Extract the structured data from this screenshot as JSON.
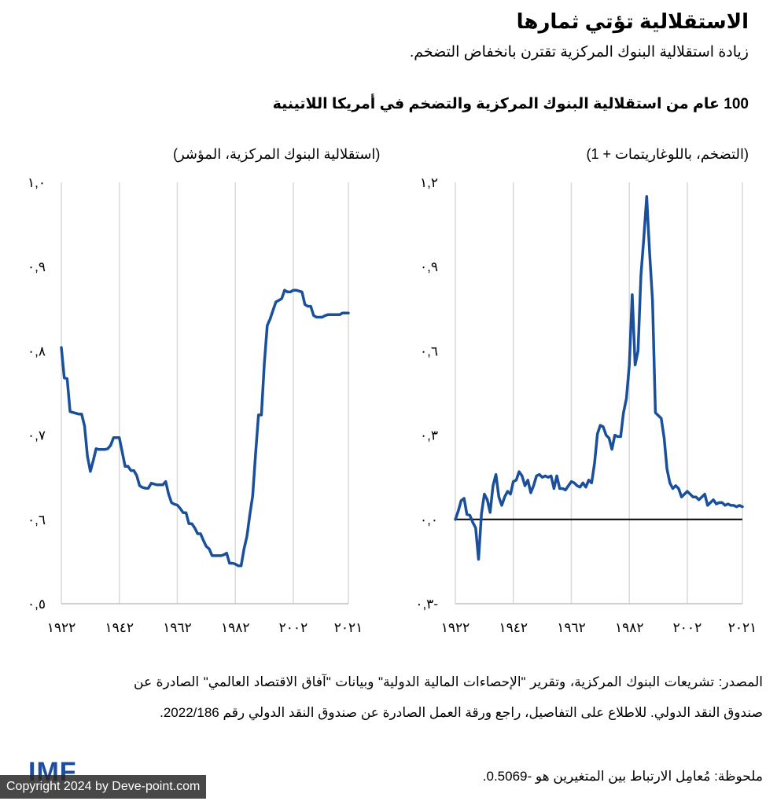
{
  "header": {
    "title": "الاستقلالية تؤتي ثمارها",
    "subtitle": "زيادة استقلالية البنوك المركزية تقترن بانخفاض التضخم.",
    "chart_heading": "100 عام من استقلالية البنوك المركزية والتضخم في أمريكا اللاتينية"
  },
  "footer": {
    "source": "المصدر: تشريعات البنوك المركزية، وتقرير \"الإحصاءات المالية الدولية\" وبيانات \"آفاق الاقتصاد العالمي\" الصادرة عن صندوق النقد الدولي. للاطلاع على التفاصيل، راجع ورقة العمل الصادرة عن صندوق النقد الدولي رقم 2022/186.",
    "note": "ملحوظة: مُعامِل الارتباط بين المتغيرين هو -0.5069.",
    "logo": "IMF",
    "copyright": "Copyright 2024 by Deve-point.com"
  },
  "colors": {
    "line": "#1a4f9c",
    "grid": "#d9d9d9",
    "zero_line": "#000000"
  },
  "chart_data": [
    {
      "type": "line",
      "ylabel": "(استقلالية البنوك المركزية، المؤشر)",
      "ylim": [
        0.5,
        1.0
      ],
      "xlim": [
        1922,
        2021
      ],
      "y_ticks": [
        0.5,
        0.6,
        0.7,
        0.8,
        0.9,
        1.0
      ],
      "y_tick_labels": [
        "٠,٥",
        "٠,٦",
        "٠,٧",
        "٠,٨",
        "٠,٩",
        "١,٠"
      ],
      "x_ticks": [
        1922,
        1942,
        1962,
        1982,
        2002,
        2021
      ],
      "x_tick_labels": [
        "١٩٢٢",
        "١٩٤٢",
        "١٩٦٢",
        "١٩٨٢",
        "٢٠٠٢",
        "٢٠٢١"
      ],
      "grid": "vertical",
      "series": [
        {
          "x": [
            1922,
            1923,
            1924,
            1925,
            1926,
            1927,
            1928,
            1929,
            1930,
            1931,
            1932,
            1933,
            1934,
            1935,
            1936,
            1937,
            1938,
            1939,
            1940,
            1941,
            1942,
            1943,
            1944,
            1945,
            1946,
            1947,
            1948,
            1949,
            1950,
            1951,
            1952,
            1953,
            1954,
            1955,
            1956,
            1957,
            1958,
            1959,
            1960,
            1961,
            1962,
            1963,
            1964,
            1965,
            1966,
            1967,
            1968,
            1969,
            1970,
            1971,
            1972,
            1973,
            1974,
            1975,
            1976,
            1977,
            1978,
            1979,
            1980,
            1981,
            1982,
            1983,
            1984,
            1985,
            1986,
            1987,
            1988,
            1989,
            1990,
            1991,
            1992,
            1993,
            1994,
            1995,
            1996,
            1997,
            1998,
            1999,
            2000,
            2001,
            2002,
            2003,
            2004,
            2005,
            2006,
            2007,
            2008,
            2009,
            2010,
            2011,
            2012,
            2013,
            2014,
            2015,
            2016,
            2017,
            2018,
            2019,
            2020,
            2021
          ],
          "values": [
            0.804,
            0.768,
            0.767,
            0.728,
            0.727,
            0.726,
            0.725,
            0.725,
            0.711,
            0.675,
            0.657,
            0.67,
            0.684,
            0.683,
            0.683,
            0.683,
            0.684,
            0.688,
            0.697,
            0.697,
            0.697,
            0.68,
            0.663,
            0.663,
            0.658,
            0.658,
            0.652,
            0.64,
            0.638,
            0.637,
            0.637,
            0.643,
            0.642,
            0.641,
            0.641,
            0.641,
            0.645,
            0.63,
            0.62,
            0.618,
            0.617,
            0.613,
            0.608,
            0.608,
            0.595,
            0.595,
            0.59,
            0.583,
            0.583,
            0.575,
            0.568,
            0.565,
            0.557,
            0.557,
            0.557,
            0.557,
            0.558,
            0.56,
            0.548,
            0.548,
            0.547,
            0.545,
            0.545,
            0.565,
            0.58,
            0.605,
            0.628,
            0.678,
            0.724,
            0.724,
            0.785,
            0.83,
            0.838,
            0.848,
            0.858,
            0.86,
            0.862,
            0.872,
            0.87,
            0.87,
            0.872,
            0.872,
            0.871,
            0.87,
            0.855,
            0.853,
            0.853,
            0.842,
            0.84,
            0.84,
            0.84,
            0.842,
            0.843,
            0.843,
            0.843,
            0.843,
            0.843,
            0.845,
            0.845,
            0.845
          ]
        }
      ]
    },
    {
      "type": "line",
      "ylabel": "(التضخم، باللوغاريتمات + 1)",
      "ylim": [
        -0.3,
        1.2
      ],
      "xlim": [
        1922,
        2021
      ],
      "y_ticks": [
        -0.3,
        0.0,
        0.3,
        0.6,
        0.9,
        1.2
      ],
      "y_tick_labels": [
        "٠,٣-",
        "٠,٠",
        "٠,٣",
        "٠,٦",
        "٠,٩",
        "١,٢"
      ],
      "x_ticks": [
        1922,
        1942,
        1962,
        1982,
        2002,
        2021
      ],
      "x_tick_labels": [
        "١٩٢٢",
        "١٩٤٢",
        "١٩٦٢",
        "١٩٨٢",
        "٢٠٠٢",
        "٢٠٢١"
      ],
      "grid": "vertical",
      "zero_line": true,
      "series": [
        {
          "x": [
            1922,
            1923,
            1924,
            1925,
            1926,
            1927,
            1928,
            1929,
            1930,
            1931,
            1932,
            1933,
            1934,
            1935,
            1936,
            1937,
            1938,
            1939,
            1940,
            1941,
            1942,
            1943,
            1944,
            1945,
            1946,
            1947,
            1948,
            1949,
            1950,
            1951,
            1952,
            1953,
            1954,
            1955,
            1956,
            1957,
            1958,
            1959,
            1960,
            1961,
            1962,
            1963,
            1964,
            1965,
            1966,
            1967,
            1968,
            1969,
            1970,
            1971,
            1972,
            1973,
            1974,
            1975,
            1976,
            1977,
            1978,
            1979,
            1980,
            1981,
            1982,
            1983,
            1984,
            1985,
            1986,
            1987,
            1988,
            1989,
            1990,
            1991,
            1992,
            1993,
            1994,
            1995,
            1996,
            1997,
            1998,
            1999,
            2000,
            2001,
            2002,
            2003,
            2004,
            2005,
            2006,
            2007,
            2008,
            2009,
            2010,
            2011,
            2012,
            2013,
            2014,
            2015,
            2016,
            2017,
            2018,
            2019,
            2020,
            2021
          ],
          "values": [
            0.0,
            0.03,
            0.067,
            0.075,
            0.018,
            0.015,
            -0.01,
            -0.03,
            -0.142,
            0.02,
            0.09,
            0.07,
            0.025,
            0.12,
            0.16,
            0.08,
            0.05,
            0.08,
            0.1,
            0.09,
            0.135,
            0.14,
            0.17,
            0.155,
            0.12,
            0.14,
            0.095,
            0.12,
            0.155,
            0.16,
            0.15,
            0.155,
            0.15,
            0.155,
            0.11,
            0.155,
            0.11,
            0.11,
            0.105,
            0.12,
            0.135,
            0.13,
            0.12,
            0.115,
            0.13,
            0.115,
            0.14,
            0.13,
            0.2,
            0.305,
            0.335,
            0.33,
            0.3,
            0.29,
            0.25,
            0.3,
            0.295,
            0.295,
            0.38,
            0.43,
            0.55,
            0.8,
            0.55,
            0.6,
            0.87,
            1.0,
            1.15,
            0.95,
            0.78,
            0.38,
            0.37,
            0.36,
            0.29,
            0.18,
            0.13,
            0.11,
            0.12,
            0.11,
            0.08,
            0.09,
            0.1,
            0.09,
            0.08,
            0.08,
            0.07,
            0.08,
            0.09,
            0.05,
            0.06,
            0.07,
            0.055,
            0.06,
            0.06,
            0.05,
            0.055,
            0.05,
            0.05,
            0.045,
            0.05,
            0.045
          ]
        }
      ]
    }
  ]
}
